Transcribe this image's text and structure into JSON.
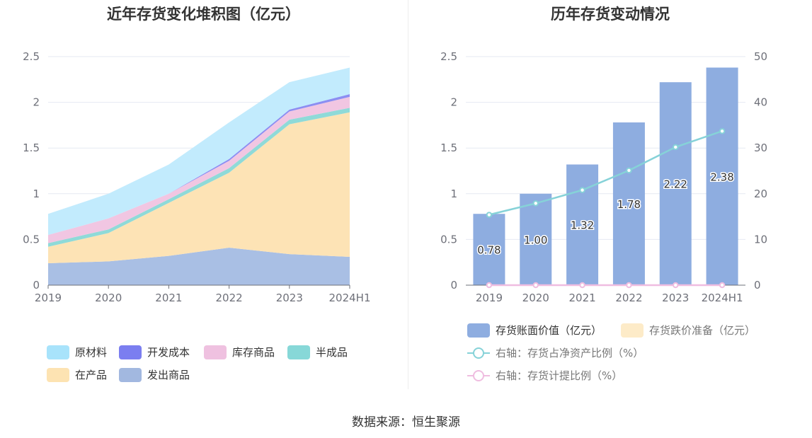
{
  "left_chart": {
    "title": "近年存货变化堆积图（亿元）",
    "legend": [
      {
        "label": "原材料",
        "color": "#a8e3fb"
      },
      {
        "label": "开发成本",
        "color": "#7b7ef0"
      },
      {
        "label": "库存商品",
        "color": "#efc1e0"
      },
      {
        "label": "半成品",
        "color": "#87d8d8"
      },
      {
        "label": "在产品",
        "color": "#fde3b2"
      },
      {
        "label": "发出商品",
        "color": "#a2b8e0"
      }
    ]
  },
  "right_chart": {
    "title": "历年存货变动情况",
    "legend": [
      {
        "label": "存货账面价值（亿元）",
        "color": "#8eade0",
        "kind": "bar"
      },
      {
        "label": "存货跌价准备（亿元）",
        "color": "#fdebc8",
        "kind": "bar"
      },
      {
        "label": "右轴：存货占净资产比例（%）",
        "color": "#86d2d8",
        "kind": "line"
      },
      {
        "label": "右轴：存货计提比例（%）",
        "color": "#efbde0",
        "kind": "line"
      }
    ]
  },
  "source": "数据来源：恒生聚源",
  "chart_data": [
    {
      "type": "area",
      "stacked": true,
      "title": "近年存货变化堆积图（亿元）",
      "categories": [
        "2019",
        "2020",
        "2021",
        "2022",
        "2023",
        "2024H1"
      ],
      "ylim": [
        0,
        2.5
      ],
      "yticks": [
        "0",
        "0.5",
        "1",
        "1.5",
        "2",
        "2.5"
      ],
      "grid": true,
      "legend_position": "bottom",
      "series": [
        {
          "name": "发出商品",
          "color": "#a9bfe4",
          "values": [
            0.24,
            0.26,
            0.32,
            0.41,
            0.34,
            0.31
          ]
        },
        {
          "name": "在产品",
          "color": "#fde3b5",
          "values": [
            0.18,
            0.31,
            0.58,
            0.82,
            1.42,
            1.58
          ]
        },
        {
          "name": "半成品",
          "color": "#8fdad8",
          "values": [
            0.04,
            0.04,
            0.04,
            0.05,
            0.05,
            0.05
          ]
        },
        {
          "name": "库存商品",
          "color": "#f1c6e2",
          "values": [
            0.09,
            0.12,
            0.06,
            0.08,
            0.09,
            0.12
          ]
        },
        {
          "name": "开发成本",
          "color": "#8c8ef2",
          "values": [
            0.0,
            0.0,
            0.0,
            0.02,
            0.02,
            0.03
          ]
        },
        {
          "name": "原材料",
          "color": "#c2ebfd",
          "values": [
            0.23,
            0.27,
            0.32,
            0.4,
            0.3,
            0.29
          ]
        }
      ]
    },
    {
      "type": "bar",
      "title": "历年存货变动情况",
      "categories": [
        "2019",
        "2020",
        "2021",
        "2022",
        "2023",
        "2024H1"
      ],
      "ylim": [
        0,
        2.5
      ],
      "yticks": [
        "0",
        "0.5",
        "1",
        "1.5",
        "2",
        "2.5"
      ],
      "y2lim": [
        0,
        50
      ],
      "y2ticks": [
        "0",
        "10",
        "20",
        "30",
        "40",
        "50"
      ],
      "grid": true,
      "legend_position": "bottom",
      "series": [
        {
          "name": "存货账面价值（亿元）",
          "type": "bar",
          "axis": "left",
          "color": "#8eade0",
          "values": [
            0.78,
            1.0,
            1.32,
            1.78,
            2.22,
            2.38
          ],
          "labels": [
            "0.78",
            "1.00",
            "1.32",
            "1.78",
            "2.22",
            "2.38"
          ]
        },
        {
          "name": "存货跌价准备（亿元）",
          "type": "bar",
          "axis": "left",
          "color": "#fdebc8",
          "values": [
            0,
            0,
            0,
            0,
            0,
            0
          ]
        },
        {
          "name": "右轴：存货占净资产比例（%）",
          "type": "line",
          "axis": "right",
          "color": "#86d2d8",
          "values": [
            15.4,
            17.9,
            20.8,
            25.1,
            30.2,
            33.7
          ]
        },
        {
          "name": "右轴：存货计提比例（%）",
          "type": "line",
          "axis": "right",
          "color": "#efbde0",
          "values": [
            0,
            0,
            0,
            0,
            0,
            0
          ]
        }
      ]
    }
  ]
}
